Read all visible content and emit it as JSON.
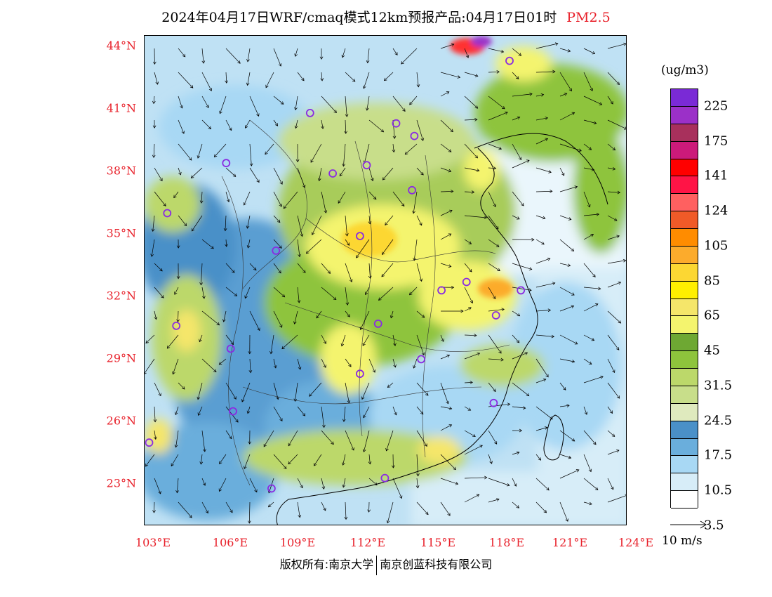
{
  "title": {
    "main": "2024年04月17日WRF/cmaq模式12km预报产品:04月17日01时",
    "pollutant": "PM2.5"
  },
  "axes": {
    "lat_labels": [
      "44°N",
      "41°N",
      "38°N",
      "35°N",
      "32°N",
      "29°N",
      "26°N",
      "23°N"
    ],
    "lon_labels": [
      "103°E",
      "106°E",
      "109°E",
      "112°E",
      "115°E",
      "118°E",
      "121°E",
      "124°E"
    ],
    "lat_range": [
      21.0,
      44.5
    ],
    "lon_range": [
      102.7,
      124.0
    ]
  },
  "legend": {
    "unit": "(ug/m3)",
    "labels": [
      "225",
      "175",
      "141",
      "124",
      "105",
      "85",
      "65",
      "45",
      "31.5",
      "24.5",
      "17.5",
      "10.5",
      "3.5"
    ],
    "colors": [
      "#7a2ad6",
      "#9b30c8",
      "#a8305c",
      "#cc1a7a",
      "#ff0000",
      "#ff1446",
      "#ff6060",
      "#f05a28",
      "#ff8c00",
      "#fcab2c",
      "#fcd733",
      "#ffef00",
      "#f5e66a",
      "#f4f46e",
      "#6ea833",
      "#8ec43c",
      "#bcd86a",
      "#c8de8a",
      "#dfeabe",
      "#4a90c8",
      "#6aaedc",
      "#a8d8f4",
      "#d7edf8",
      "#ffffff"
    ]
  },
  "wind_reference": "10 m/s",
  "footer": {
    "left": "版权所有:南京大学",
    "right": "南京创蓝科技有限公司"
  },
  "cities": [
    {
      "lon": 118.8,
      "lat": 43.3
    },
    {
      "lon": 110.0,
      "lat": 40.8
    },
    {
      "lon": 113.8,
      "lat": 40.3
    },
    {
      "lon": 114.6,
      "lat": 39.7
    },
    {
      "lon": 106.3,
      "lat": 38.4
    },
    {
      "lon": 111.0,
      "lat": 37.9
    },
    {
      "lon": 112.5,
      "lat": 38.3
    },
    {
      "lon": 114.5,
      "lat": 37.1
    },
    {
      "lon": 103.7,
      "lat": 36.0
    },
    {
      "lon": 112.2,
      "lat": 34.9
    },
    {
      "lon": 108.5,
      "lat": 34.2
    },
    {
      "lon": 116.9,
      "lat": 32.7
    },
    {
      "lon": 115.8,
      "lat": 32.3
    },
    {
      "lon": 119.3,
      "lat": 32.3
    },
    {
      "lon": 118.2,
      "lat": 31.1
    },
    {
      "lon": 104.1,
      "lat": 30.6
    },
    {
      "lon": 113.0,
      "lat": 30.7
    },
    {
      "lon": 106.5,
      "lat": 29.5
    },
    {
      "lon": 114.9,
      "lat": 29.0
    },
    {
      "lon": 112.2,
      "lat": 28.3
    },
    {
      "lon": 106.6,
      "lat": 26.5
    },
    {
      "lon": 118.1,
      "lat": 26.9
    },
    {
      "lon": 102.9,
      "lat": 25.0
    },
    {
      "lon": 113.3,
      "lat": 23.3
    },
    {
      "lon": 108.3,
      "lat": 22.8
    }
  ]
}
